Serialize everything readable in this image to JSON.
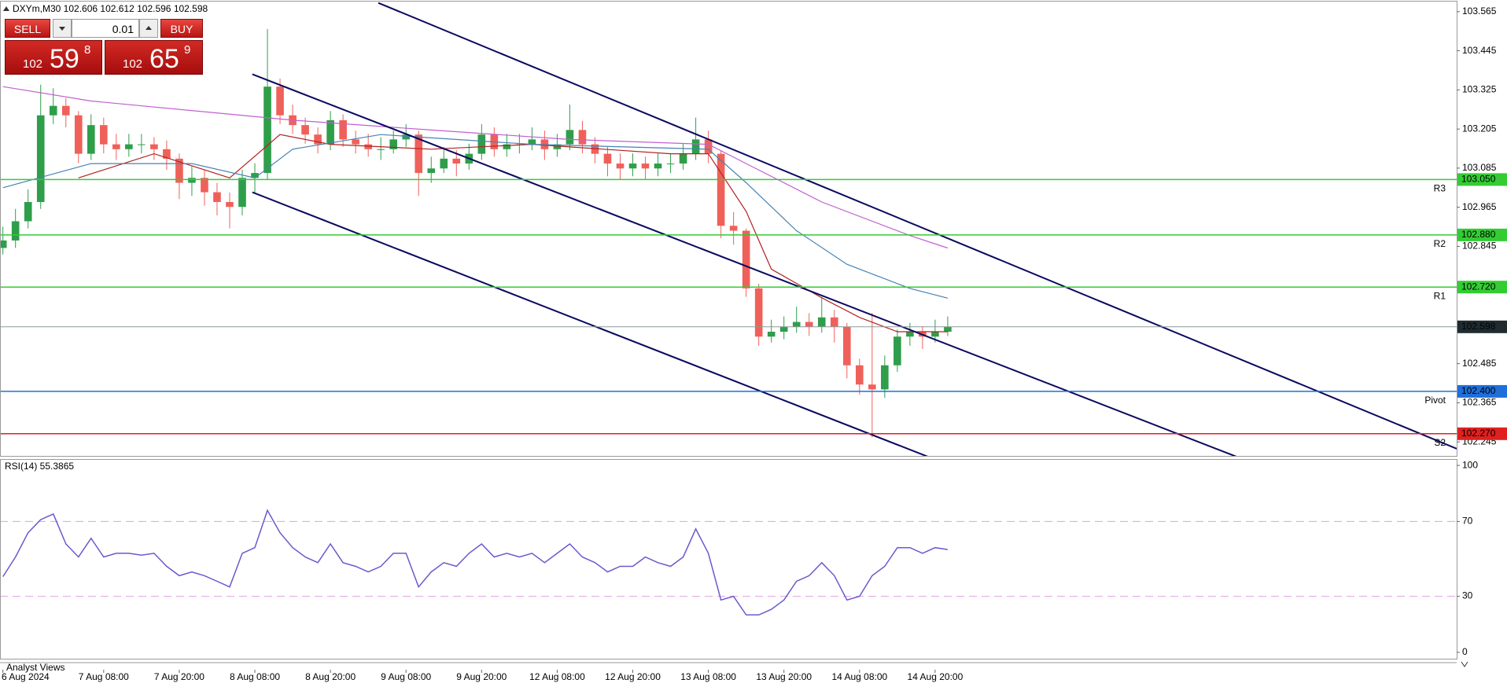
{
  "header": {
    "symbol_info": "DXYm,M30 102.606 102.612 102.596 102.598"
  },
  "trade_panel": {
    "sell": "SELL",
    "buy": "BUY",
    "lot": "0.01",
    "sell_price": {
      "big": "102",
      "main": "59",
      "small": "8"
    },
    "buy_price": {
      "big": "102",
      "main": "65",
      "small": "9"
    }
  },
  "footer_tab": "Analyst Views",
  "chart_data": [
    {
      "type": "candlestick",
      "up_color": "#2e9e4a",
      "down_color": "#f0605a",
      "xlim": [
        -0.23,
        115.4
      ],
      "ylim": [
        102.202,
        103.596
      ],
      "yticks": [
        103.565,
        103.445,
        103.325,
        103.205,
        103.085,
        102.965,
        102.845,
        102.485,
        102.365,
        102.245
      ],
      "xticks": [
        {
          "value": 0,
          "label": "6 Aug 2024"
        },
        {
          "value": 8,
          "label": "7 Aug 08:00"
        },
        {
          "value": 14,
          "label": "7 Aug 20:00"
        },
        {
          "value": 20,
          "label": "8 Aug 08:00"
        },
        {
          "value": 26,
          "label": "8 Aug 20:00"
        },
        {
          "value": 32,
          "label": "9 Aug 08:00"
        },
        {
          "value": 38,
          "label": "9 Aug 20:00"
        },
        {
          "value": 44,
          "label": "12 Aug 08:00"
        },
        {
          "value": 50,
          "label": "12 Aug 20:00"
        },
        {
          "value": 56,
          "label": "13 Aug 08:00"
        },
        {
          "value": 62,
          "label": "13 Aug 20:00"
        },
        {
          "value": 68,
          "label": "14 Aug 08:00"
        },
        {
          "value": 74,
          "label": "14 Aug 20:00"
        }
      ],
      "open": [
        102.84,
        102.863,
        102.922,
        102.981,
        103.247,
        103.276,
        103.247,
        103.129,
        103.217,
        103.158,
        103.143,
        103.158,
        103.158,
        103.143,
        103.114,
        103.04,
        103.055,
        103.011,
        102.981,
        102.966,
        103.055,
        103.07,
        103.335,
        103.247,
        103.217,
        103.188,
        103.158,
        103.232,
        103.173,
        103.158,
        103.143,
        103.143,
        103.173,
        103.188,
        103.07,
        103.084,
        103.114,
        103.099,
        103.129,
        103.188,
        103.143,
        103.158,
        103.158,
        103.173,
        103.143,
        103.158,
        103.202,
        103.158,
        103.129,
        103.099,
        103.084,
        103.099,
        103.084,
        103.099,
        103.099,
        103.129,
        103.173,
        103.129,
        102.908,
        102.893,
        102.716,
        102.568,
        102.583,
        102.598,
        102.613,
        102.598,
        102.627,
        102.598,
        102.48,
        102.421,
        102.406,
        102.48,
        102.568,
        102.583,
        102.568,
        102.583
      ],
      "high": [
        102.905,
        102.96,
        103.02,
        103.341,
        103.33,
        103.3,
        103.26,
        103.25,
        103.24,
        103.19,
        103.19,
        103.19,
        103.18,
        103.17,
        103.13,
        103.09,
        103.08,
        103.04,
        103.01,
        103.08,
        103.1,
        103.512,
        103.36,
        103.28,
        103.24,
        103.21,
        103.26,
        103.25,
        103.2,
        103.19,
        103.18,
        103.2,
        103.22,
        103.2,
        103.12,
        103.15,
        103.14,
        103.16,
        103.22,
        103.21,
        103.19,
        103.19,
        103.21,
        103.2,
        103.19,
        103.28,
        103.23,
        103.18,
        103.15,
        103.13,
        103.13,
        103.12,
        103.13,
        103.13,
        103.16,
        103.24,
        103.2,
        103.14,
        102.95,
        102.9,
        102.73,
        102.62,
        102.63,
        102.66,
        102.64,
        102.69,
        102.65,
        102.61,
        102.5,
        102.64,
        102.51,
        102.59,
        102.61,
        102.6,
        102.62,
        102.63
      ],
      "low": [
        102.82,
        102.84,
        102.9,
        102.96,
        103.22,
        103.21,
        103.1,
        103.11,
        103.13,
        103.11,
        103.12,
        103.13,
        103.11,
        103.08,
        102.99,
        103.0,
        102.97,
        102.94,
        102.9,
        102.94,
        103.01,
        103.05,
        103.22,
        103.19,
        103.16,
        103.13,
        103.14,
        103.15,
        103.13,
        103.12,
        103.11,
        103.13,
        103.15,
        103.0,
        103.04,
        103.07,
        103.06,
        103.08,
        103.11,
        103.12,
        103.12,
        103.13,
        103.14,
        103.11,
        103.12,
        103.14,
        103.13,
        103.1,
        103.06,
        103.05,
        103.06,
        103.05,
        103.06,
        103.07,
        103.08,
        103.11,
        103.1,
        102.87,
        102.85,
        102.69,
        102.54,
        102.55,
        102.56,
        102.58,
        102.57,
        102.58,
        102.55,
        102.44,
        102.39,
        102.259,
        102.38,
        102.46,
        102.54,
        102.53,
        102.55,
        102.57
      ],
      "close": [
        102.863,
        102.922,
        102.981,
        103.247,
        103.276,
        103.247,
        103.129,
        103.217,
        103.158,
        103.143,
        103.158,
        103.158,
        103.143,
        103.114,
        103.04,
        103.055,
        103.011,
        102.981,
        102.966,
        103.055,
        103.07,
        103.335,
        103.247,
        103.217,
        103.188,
        103.158,
        103.232,
        103.173,
        103.158,
        103.143,
        103.143,
        103.173,
        103.188,
        103.07,
        103.084,
        103.114,
        103.099,
        103.129,
        103.188,
        103.143,
        103.158,
        103.158,
        103.173,
        103.143,
        103.158,
        103.202,
        103.158,
        103.129,
        103.099,
        103.084,
        103.099,
        103.084,
        103.099,
        103.099,
        103.129,
        103.173,
        103.129,
        102.908,
        102.893,
        102.716,
        102.568,
        102.583,
        102.598,
        102.613,
        102.598,
        102.627,
        102.598,
        102.48,
        102.421,
        102.406,
        102.48,
        102.568,
        102.583,
        102.568,
        102.583,
        102.598
      ],
      "series": [
        {
          "color": "#b22222",
          "x": [
            6,
            12,
            18,
            22,
            26,
            34,
            42,
            53,
            56,
            59,
            61,
            65,
            68,
            71,
            75
          ],
          "values": [
            103.055,
            103.129,
            103.055,
            103.188,
            103.158,
            103.143,
            103.158,
            103.129,
            103.129,
            102.952,
            102.775,
            102.687,
            102.627,
            102.583,
            102.583
          ]
        },
        {
          "color": "#4682b4",
          "x": [
            0,
            7,
            15,
            20,
            23,
            30,
            42,
            56,
            59,
            63,
            67,
            72,
            75
          ],
          "values": [
            103.025,
            103.099,
            103.099,
            103.055,
            103.143,
            103.188,
            103.158,
            103.143,
            103.04,
            102.893,
            102.79,
            102.716,
            102.686
          ]
        },
        {
          "color": "#c060d0",
          "x": [
            0,
            7,
            23,
            34,
            45,
            56,
            59,
            65,
            72,
            75
          ],
          "values": [
            103.335,
            103.291,
            103.232,
            103.202,
            103.173,
            103.158,
            103.099,
            102.981,
            102.878,
            102.84
          ]
        }
      ],
      "trendlines": [
        {
          "color": "#0a0a60",
          "x": [
            29.8,
            115.4
          ],
          "values": [
            103.592,
            102.224
          ]
        },
        {
          "color": "#0a0a60",
          "x": [
            19.8,
            97.9
          ],
          "values": [
            103.373,
            102.2
          ]
        },
        {
          "color": "#0a0a60",
          "x": [
            19.8,
            73.4
          ],
          "values": [
            103.011,
            102.2
          ]
        }
      ],
      "levels": [
        {
          "name": "R3",
          "value": 103.05,
          "label": "103.050",
          "color": "#33cc33"
        },
        {
          "name": "R2",
          "value": 102.88,
          "label": "102.880",
          "color": "#33cc33"
        },
        {
          "name": "R1",
          "value": 102.72,
          "label": "102.720",
          "color": "#33cc33"
        },
        {
          "name": "Pivot",
          "value": 102.4,
          "label": "102.400",
          "color": "#1e6fd9"
        },
        {
          "name": "S2",
          "value": 102.27,
          "label": "102.270",
          "color": "#e02020"
        }
      ],
      "current_price": 102.598,
      "current_color": "#8a9a9a"
    },
    {
      "type": "line",
      "title": "RSI(14) 55.3865",
      "color": "#6a5acd",
      "ylim": [
        -3.4,
        103.4
      ],
      "yticks": [
        100,
        70,
        30,
        0
      ],
      "levels": [
        70,
        30
      ],
      "level_color": "#e0a0e0",
      "values": [
        40.5,
        51,
        64,
        71,
        74,
        58,
        51,
        61,
        51,
        53,
        53,
        52,
        53,
        46,
        41,
        43,
        41,
        38,
        35,
        53,
        56,
        76,
        64,
        56,
        51,
        48,
        58,
        48,
        46,
        43,
        46,
        53,
        53,
        35,
        43,
        48,
        46,
        53,
        58,
        51,
        53,
        51,
        53,
        48,
        53,
        58,
        51,
        48,
        43,
        46,
        46,
        51,
        48,
        46,
        51,
        66,
        53,
        28,
        30,
        20,
        20,
        23,
        28,
        38,
        41,
        48,
        41,
        28,
        30,
        41,
        46,
        56,
        56,
        53,
        56,
        55
      ]
    }
  ]
}
